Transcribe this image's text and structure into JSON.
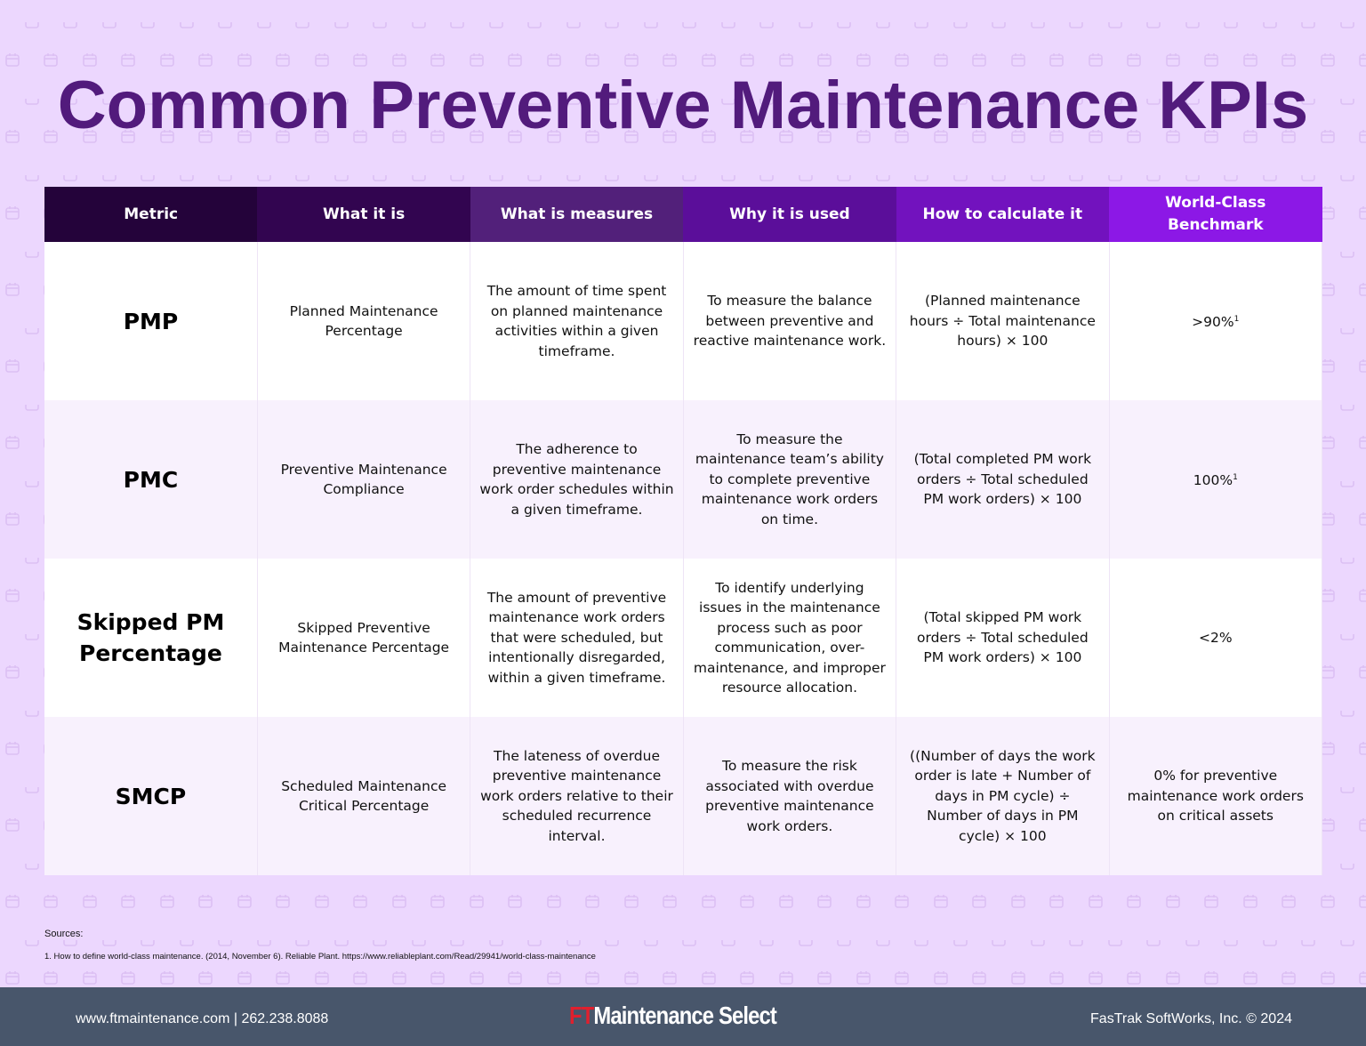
{
  "title": "Common Preventive Maintenance KPIs",
  "colors": {
    "background": "#ecd7fe",
    "title": "#521b7c",
    "footer": "#48566b",
    "logo_accent": "#e0202e",
    "header": [
      "#24033a",
      "#320550",
      "#52207a",
      "#5b0e9a",
      "#7212be",
      "#8c18e6"
    ]
  },
  "background_icon": "calendar-icon",
  "table": {
    "headers": [
      "Metric",
      "What it is",
      "What is measures",
      "Why it is used",
      "How to calculate it",
      "World-Class Benchmark"
    ],
    "rows": [
      {
        "metric": "PMP",
        "what": "Planned Maintenance Percentage",
        "measures": "The amount of time spent on planned maintenance activities within a given timeframe.",
        "why": "To measure the balance between preventive and reactive maintenance work.",
        "calc": "(Planned maintenance hours ÷ Total maintenance hours) × 100",
        "benchmark": ">90%",
        "benchmark_sup": "1"
      },
      {
        "metric": "PMC",
        "what": "Preventive Maintenance Compliance",
        "measures": "The adherence to preventive maintenance work order schedules within a given timeframe.",
        "why": "To measure the maintenance team’s ability to complete preventive maintenance work orders on time.",
        "calc": "(Total completed PM work orders ÷ Total scheduled PM work orders) × 100",
        "benchmark": "100%",
        "benchmark_sup": "1"
      },
      {
        "metric": "Skipped PM Percentage",
        "what": "Skipped Preventive Maintenance Percentage",
        "measures": "The amount of preventive maintenance work orders that were scheduled, but intentionally disregarded, within a given timeframe.",
        "why": "To identify underlying issues in the maintenance process such as poor communication, over-maintenance, and improper resource allocation.",
        "calc": "(Total skipped PM work orders ÷ Total scheduled PM work orders) × 100",
        "benchmark": "<2%",
        "benchmark_sup": ""
      },
      {
        "metric": "SMCP",
        "what": "Scheduled Maintenance Critical Percentage",
        "measures": "The lateness of overdue preventive maintenance work orders relative to their scheduled recurrence interval.",
        "why": "To measure the risk associated with overdue preventive maintenance work orders.",
        "calc": "((Number of days the work order is late + Number of days in PM cycle) ÷ Number of days in PM cycle) × 100",
        "benchmark": "0% for preventive maintenance work orders on critical assets",
        "benchmark_sup": ""
      }
    ]
  },
  "sources": {
    "label": "Sources:",
    "items": [
      "1. How to define world-class maintenance. (2014, November 6). Reliable Plant. https://www.reliableplant.com/Read/29941/world-class-maintenance"
    ]
  },
  "footer": {
    "contact": "www.ftmaintenance.com | 262.238.8088",
    "logo_prefix": "FT",
    "logo_text": "Maintenance Select",
    "copyright": "FasTrak SoftWorks, Inc. © 2024"
  }
}
